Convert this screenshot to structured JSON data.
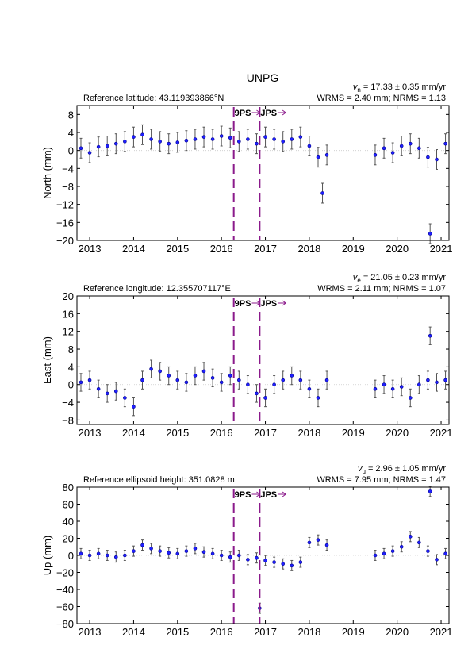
{
  "chart_data": [
    {
      "type": "scatter",
      "title": "UNPG",
      "subtitle": "Reference latitude: 43.119393866°N",
      "rate_symbol": "v",
      "rate_subscript": "n",
      "rate": "= 17.33 ± 0.35 mm/yr",
      "stats": "WRMS = 2.40 mm; NRMS = 1.13",
      "ylabel": "North (mm)",
      "color": "#1f1fff",
      "error_color": "#555555",
      "error": 2.2,
      "x": [
        2012.8,
        2013.0,
        2013.2,
        2013.4,
        2013.6,
        2013.8,
        2014.0,
        2014.2,
        2014.4,
        2014.6,
        2014.8,
        2015.0,
        2015.2,
        2015.4,
        2015.6,
        2015.8,
        2016.0,
        2016.2,
        2016.4,
        2016.6,
        2016.8,
        2017.0,
        2017.2,
        2017.4,
        2017.6,
        2017.8,
        2018.0,
        2018.2,
        2018.4,
        2019.5,
        2019.7,
        2019.9,
        2020.1,
        2020.3,
        2020.5,
        2020.7,
        2020.9,
        2021.1,
        2020.75,
        2018.3
      ],
      "values": [
        0.5,
        -0.5,
        0.8,
        1.0,
        1.5,
        2.0,
        3.0,
        3.5,
        2.5,
        2.0,
        1.5,
        1.8,
        2.2,
        2.5,
        3.0,
        2.5,
        3.2,
        2.8,
        2.0,
        2.5,
        1.5,
        3.0,
        2.5,
        2.0,
        2.5,
        3.0,
        1.0,
        -1.5,
        -1.0,
        -1.0,
        0.5,
        -0.5,
        1.0,
        1.5,
        0.5,
        -1.5,
        -2.0,
        1.5,
        -18.5,
        -9.5
      ],
      "xlim": [
        2012.71,
        2021.18
      ],
      "ylim": [
        -20,
        10
      ],
      "xticks": [
        2013,
        2014,
        2015,
        2016,
        2017,
        2018,
        2019,
        2020,
        2021
      ],
      "yticks": [
        {
          "value": -20,
          "label": "−20"
        },
        {
          "value": -16,
          "label": "−16"
        },
        {
          "value": -12,
          "label": "−12"
        },
        {
          "value": -8,
          "label": "−8"
        },
        {
          "value": -4,
          "label": "−4"
        },
        0,
        4,
        8
      ],
      "events": [
        {
          "x": 2016.28,
          "label": "9PS"
        },
        {
          "x": 2016.87,
          "label": "JPS"
        }
      ],
      "event_color": "#8b1a8b"
    },
    {
      "type": "scatter",
      "subtitle": "Reference longitude: 12.355707117°E",
      "rate_symbol": "v",
      "rate_subscript": "e",
      "rate": "= 21.05 ± 0.23 mm/yr",
      "stats": "WRMS = 2.11 mm; NRMS = 1.07",
      "ylabel": "East (mm)",
      "color": "#1f1fff",
      "error_color": "#555555",
      "error": 2.0,
      "x": [
        2012.8,
        2013.0,
        2013.2,
        2013.4,
        2013.6,
        2013.8,
        2014.0,
        2014.2,
        2014.4,
        2014.6,
        2014.8,
        2015.0,
        2015.2,
        2015.4,
        2015.6,
        2015.8,
        2016.0,
        2016.2,
        2016.4,
        2016.6,
        2016.8,
        2017.0,
        2017.2,
        2017.4,
        2017.6,
        2017.8,
        2018.0,
        2018.2,
        2018.4,
        2019.5,
        2019.7,
        2019.9,
        2020.1,
        2020.3,
        2020.5,
        2020.7,
        2020.9,
        2021.1,
        2020.75
      ],
      "values": [
        0.5,
        1,
        -1,
        -2,
        -1.5,
        -3,
        -5,
        1,
        3.5,
        3,
        2,
        1,
        0.5,
        2,
        3,
        1.5,
        0.5,
        2,
        1,
        0,
        -2,
        -3,
        0,
        1,
        2,
        1,
        -1,
        -3,
        1,
        -1,
        0,
        -1,
        -0.5,
        -3,
        0,
        1,
        0.5,
        1,
        11
      ],
      "xlim": [
        2012.71,
        2021.18
      ],
      "ylim": [
        -9,
        20
      ],
      "xticks": [
        2013,
        2014,
        2015,
        2016,
        2017,
        2018,
        2019,
        2020,
        2021
      ],
      "yticks": [
        {
          "value": -8,
          "label": "−8"
        },
        {
          "value": -4,
          "label": "−4"
        },
        0,
        4,
        8,
        12,
        16,
        20
      ],
      "events": [
        {
          "x": 2016.28,
          "label": "9PS"
        },
        {
          "x": 2016.87,
          "label": "JPS"
        }
      ],
      "event_color": "#8b1a8b"
    },
    {
      "type": "scatter",
      "subtitle": "Reference ellipsoid height: 351.0828 m",
      "rate_symbol": "v",
      "rate_subscript": "u",
      "rate": "= 2.96 ± 1.05 mm/yr",
      "stats": "WRMS = 7.95 mm; NRMS = 1.47",
      "ylabel": "Up (mm)",
      "color": "#1f1fff",
      "error_color": "#555555",
      "error": 6,
      "x": [
        2012.8,
        2013.0,
        2013.2,
        2013.4,
        2013.6,
        2013.8,
        2014.0,
        2014.2,
        2014.4,
        2014.6,
        2014.8,
        2015.0,
        2015.2,
        2015.4,
        2015.6,
        2015.8,
        2016.0,
        2016.2,
        2016.4,
        2016.6,
        2016.8,
        2017.0,
        2017.2,
        2017.4,
        2017.6,
        2017.8,
        2018.0,
        2018.2,
        2018.4,
        2019.5,
        2019.7,
        2019.9,
        2020.1,
        2020.3,
        2020.5,
        2020.7,
        2020.9,
        2021.1,
        2020.75,
        2016.87
      ],
      "values": [
        2,
        0,
        2,
        0,
        -2,
        0,
        5,
        12,
        8,
        5,
        3,
        2,
        5,
        8,
        4,
        2,
        0,
        -2,
        0,
        -5,
        -3,
        -6,
        -8,
        -10,
        -12,
        -8,
        15,
        18,
        12,
        0,
        2,
        5,
        10,
        22,
        15,
        5,
        -5,
        2,
        75,
        -62
      ],
      "xlim": [
        2012.71,
        2021.18
      ],
      "ylim": [
        -80,
        80
      ],
      "xticks": [
        2013,
        2014,
        2015,
        2016,
        2017,
        2018,
        2019,
        2020,
        2021
      ],
      "yticks": [
        {
          "value": -80,
          "label": "−80"
        },
        {
          "value": -60,
          "label": "−60"
        },
        {
          "value": -40,
          "label": "−40"
        },
        {
          "value": -20,
          "label": "−20"
        },
        0,
        20,
        40,
        60,
        80
      ],
      "events": [
        {
          "x": 2016.28,
          "label": "9PS"
        },
        {
          "x": 2016.87,
          "label": "JPS"
        }
      ],
      "event_color": "#8b1a8b"
    }
  ]
}
